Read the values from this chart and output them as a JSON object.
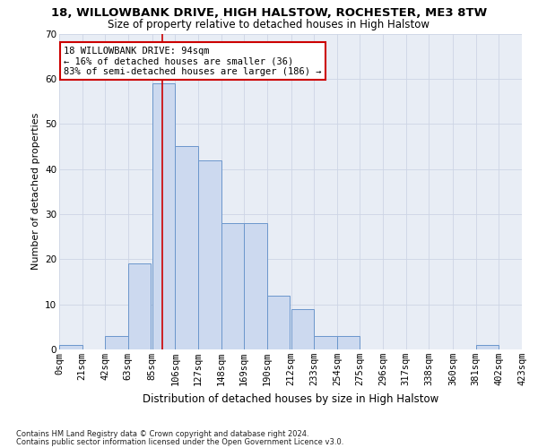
{
  "title": "18, WILLOWBANK DRIVE, HIGH HALSTOW, ROCHESTER, ME3 8TW",
  "subtitle": "Size of property relative to detached houses in High Halstow",
  "xlabel": "Distribution of detached houses by size in High Halstow",
  "ylabel": "Number of detached properties",
  "footnote1": "Contains HM Land Registry data © Crown copyright and database right 2024.",
  "footnote2": "Contains public sector information licensed under the Open Government Licence v3.0.",
  "bar_left_edges": [
    0,
    21,
    42,
    63,
    85,
    106,
    127,
    148,
    169,
    190,
    212,
    233,
    254,
    275,
    296,
    317,
    338,
    360,
    381,
    402
  ],
  "bar_heights": [
    1,
    0,
    3,
    19,
    59,
    45,
    42,
    28,
    28,
    12,
    9,
    3,
    3,
    0,
    0,
    0,
    0,
    0,
    1,
    0
  ],
  "bin_width": 21,
  "bar_facecolor": "#ccd9ef",
  "bar_edgecolor": "#6b96cc",
  "tick_labels": [
    "0sqm",
    "21sqm",
    "42sqm",
    "63sqm",
    "85sqm",
    "106sqm",
    "127sqm",
    "148sqm",
    "169sqm",
    "190sqm",
    "212sqm",
    "233sqm",
    "254sqm",
    "275sqm",
    "296sqm",
    "317sqm",
    "338sqm",
    "360sqm",
    "381sqm",
    "402sqm",
    "423sqm"
  ],
  "ylim": [
    0,
    70
  ],
  "yticks": [
    0,
    10,
    20,
    30,
    40,
    50,
    60,
    70
  ],
  "red_line_x": 94,
  "annotation_title": "18 WILLOWBANK DRIVE: 94sqm",
  "annotation_line2": "← 16% of detached houses are smaller (36)",
  "annotation_line3": "83% of semi-detached houses are larger (186) →",
  "annotation_box_color": "#ffffff",
  "annotation_border_color": "#cc0000",
  "red_line_color": "#cc0000",
  "grid_color": "#cdd5e5",
  "bg_color": "#e8edf5",
  "title_fontsize": 9.5,
  "subtitle_fontsize": 8.5,
  "ylabel_fontsize": 8,
  "xlabel_fontsize": 8.5,
  "tick_fontsize": 7.5,
  "annot_fontsize": 7.5,
  "footnote_fontsize": 6
}
